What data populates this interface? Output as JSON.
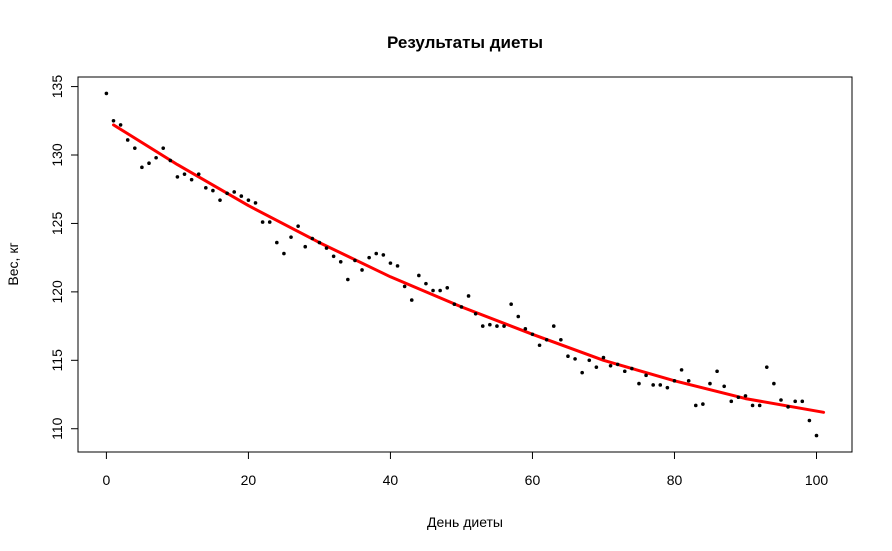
{
  "chart_data": {
    "type": "scatter",
    "title": "Результаты диеты",
    "xlabel": "День диеты",
    "ylabel": "Вес, кг",
    "xlim": [
      -4,
      105
    ],
    "ylim": [
      108.3,
      135.7
    ],
    "x_ticks": [
      0,
      20,
      40,
      60,
      80,
      100
    ],
    "y_ticks": [
      110,
      115,
      120,
      125,
      130,
      135
    ],
    "grid": false,
    "series": [
      {
        "kind": "points",
        "color": "#000000",
        "x": [
          0,
          1,
          2,
          3,
          4,
          5,
          6,
          7,
          8,
          9,
          10,
          11,
          12,
          13,
          14,
          15,
          16,
          17,
          18,
          19,
          20,
          21,
          22,
          23,
          24,
          25,
          26,
          27,
          28,
          29,
          30,
          31,
          32,
          33,
          34,
          35,
          36,
          37,
          38,
          39,
          40,
          41,
          42,
          43,
          44,
          45,
          46,
          47,
          48,
          49,
          50,
          51,
          52,
          53,
          54,
          55,
          56,
          57,
          58,
          59,
          60,
          61,
          62,
          63,
          64,
          65,
          66,
          67,
          68,
          69,
          70,
          71,
          72,
          73,
          74,
          75,
          76,
          77,
          78,
          79,
          80,
          81,
          82,
          83,
          84,
          85,
          86,
          87,
          88,
          89,
          90,
          91,
          92,
          93,
          94,
          95,
          96,
          97,
          98,
          99,
          100
        ],
        "y": [
          134.5,
          132.5,
          132.2,
          131.1,
          130.5,
          129.1,
          129.4,
          129.8,
          130.5,
          129.6,
          128.4,
          128.6,
          128.2,
          128.6,
          127.6,
          127.4,
          126.7,
          127.2,
          127.3,
          127.0,
          126.7,
          126.5,
          125.1,
          125.1,
          123.6,
          122.8,
          124.0,
          124.8,
          123.3,
          123.9,
          123.6,
          123.2,
          122.6,
          122.2,
          120.9,
          122.3,
          121.6,
          122.5,
          122.8,
          122.7,
          122.1,
          121.9,
          120.4,
          119.4,
          121.2,
          120.6,
          120.1,
          120.1,
          120.3,
          119.1,
          118.9,
          119.7,
          118.4,
          117.5,
          117.6,
          117.5,
          117.5,
          119.1,
          118.2,
          117.3,
          116.9,
          116.1,
          116.5,
          117.5,
          116.5,
          115.3,
          115.1,
          114.1,
          115.0,
          114.5,
          115.2,
          114.6,
          114.7,
          114.2,
          114.4,
          113.3,
          113.9,
          113.2,
          113.2,
          113.0,
          113.5,
          114.3,
          113.5,
          111.7,
          111.8,
          113.3,
          114.2,
          113.1,
          112.0,
          112.3,
          112.4,
          111.7,
          111.7,
          114.5,
          113.3,
          112.1,
          111.6,
          112.0,
          112.0,
          110.6,
          109.5
        ]
      },
      {
        "kind": "fit-line",
        "color": "#ff0000",
        "x": [
          1,
          10,
          20,
          30,
          40,
          50,
          60,
          70,
          80,
          90,
          101
        ],
        "y": [
          132.2,
          129.3,
          126.3,
          123.6,
          121.1,
          118.9,
          116.9,
          115.0,
          113.5,
          112.2,
          111.2
        ]
      }
    ]
  }
}
